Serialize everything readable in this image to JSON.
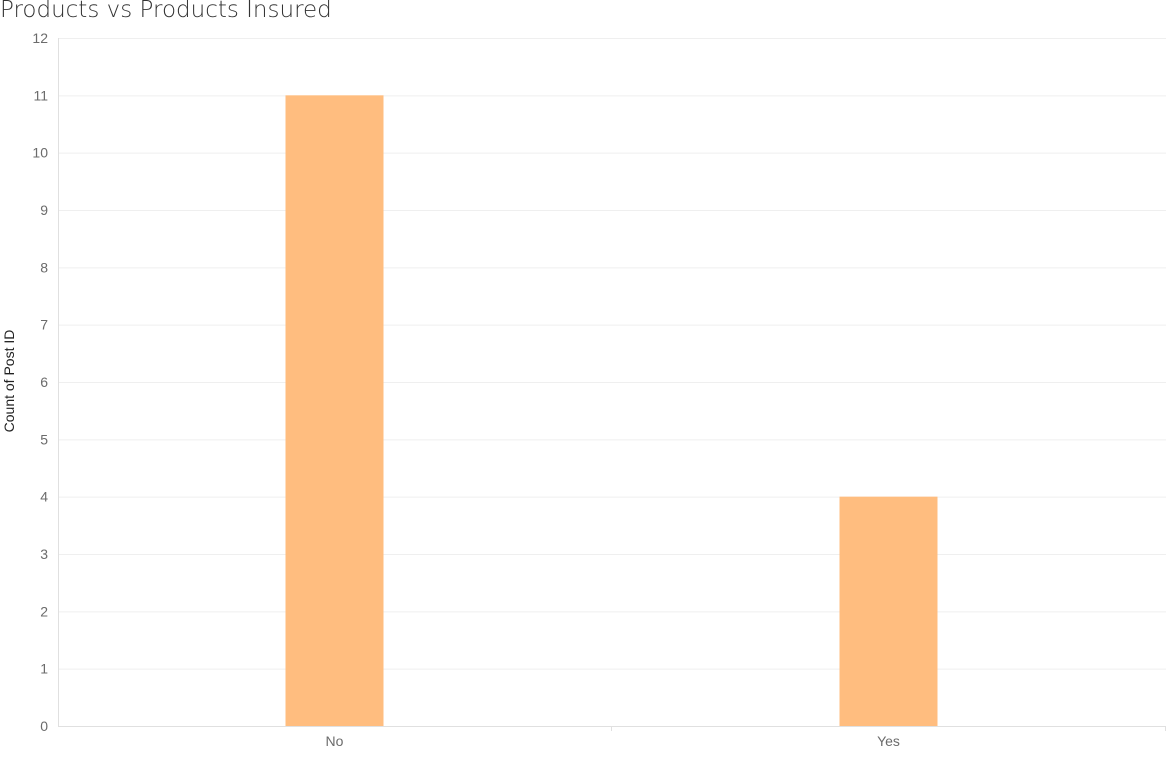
{
  "chart_data": {
    "type": "bar",
    "title": "Products vs Products Insured",
    "xlabel": "",
    "ylabel": "Count of Post ID",
    "categories": [
      "No",
      "Yes"
    ],
    "values": [
      11,
      4
    ],
    "ylim": [
      0,
      12
    ],
    "yticks": [
      0,
      1,
      2,
      3,
      4,
      5,
      6,
      7,
      8,
      9,
      10,
      11,
      12
    ],
    "grid": true,
    "legend": "none",
    "bar_color": "#ffbd7f"
  }
}
